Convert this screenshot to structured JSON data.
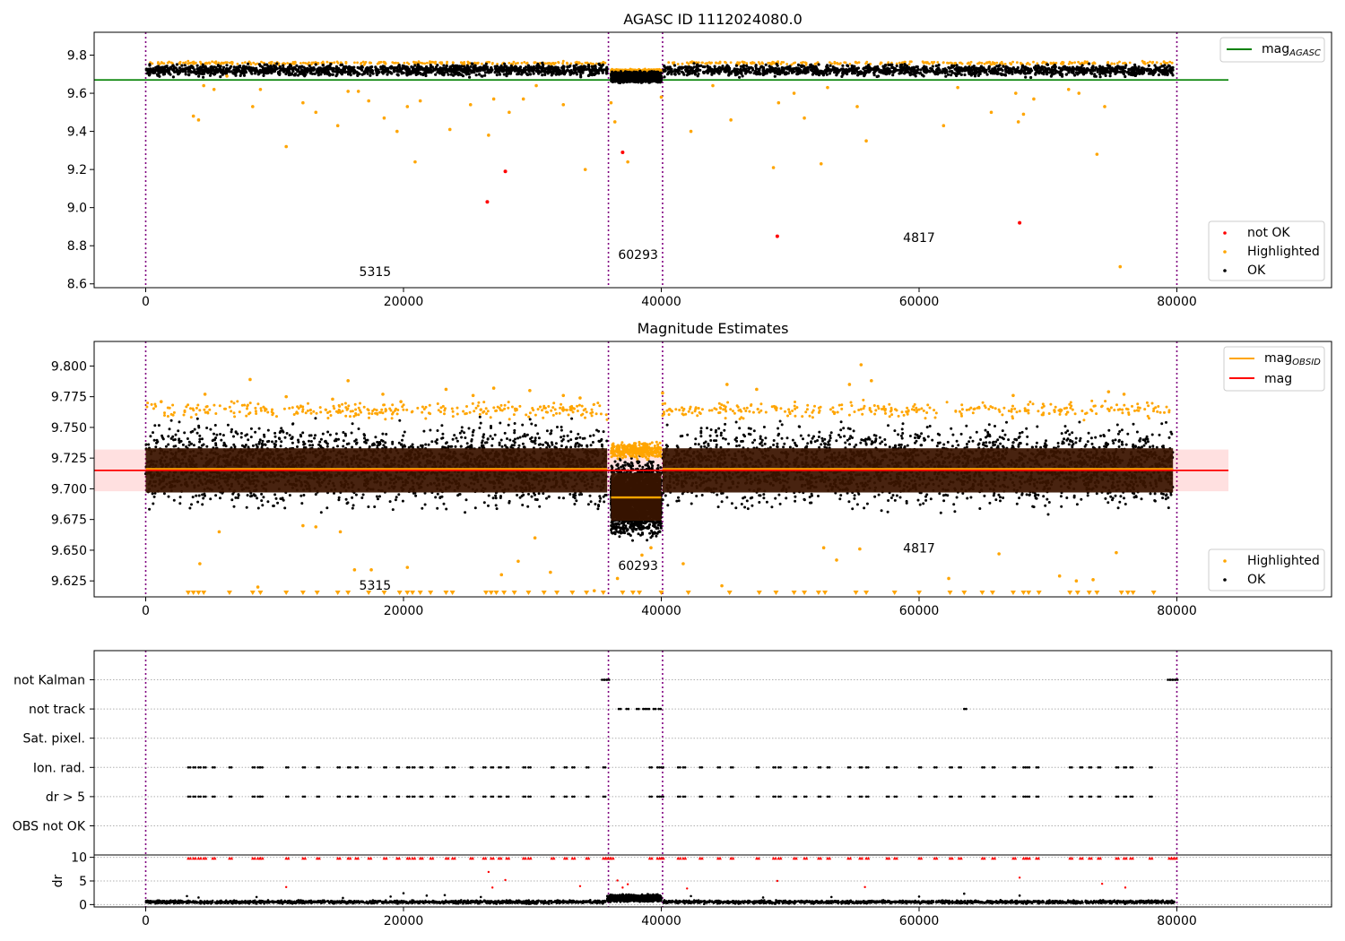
{
  "chart_data": [
    {
      "type": "scatter",
      "title": "AGASC ID 1112024080.0",
      "xlabel": "",
      "ylabel": "",
      "xlim": [
        -4000,
        92000
      ],
      "ylim": [
        8.58,
        9.92
      ],
      "xticks": [
        0,
        20000,
        40000,
        60000,
        80000
      ],
      "xtick_labels": [
        "0",
        "20000",
        "40000",
        "60000",
        "80000"
      ],
      "yticks": [
        8.6,
        8.8,
        9.0,
        9.2,
        9.4,
        9.6,
        9.8
      ],
      "ytick_labels": [
        "8.6",
        "8.8",
        "9.0",
        "9.2",
        "9.4",
        "9.6",
        "9.8"
      ],
      "obs_boundaries": [
        0,
        35900,
        40100,
        80000
      ],
      "obs_labels": [
        {
          "text": "5315",
          "x": 17800,
          "y": 8.64
        },
        {
          "text": "60293",
          "x": 38200,
          "y": 8.73
        },
        {
          "text": "4817",
          "x": 60000,
          "y": 8.82
        }
      ],
      "series": [
        {
          "name": "mag_AGASC",
          "legend": {
            "base": "mag",
            "sub": "AGASC"
          },
          "kind": "line",
          "color": "#008000",
          "x": [
            -4000,
            84000
          ],
          "y": [
            9.67,
            9.67
          ]
        },
        {
          "name": "not OK",
          "kind": "points",
          "color": "#ff0000",
          "x": [
            26500,
            27900,
            37000,
            49000,
            67800
          ],
          "y": [
            9.03,
            9.19,
            9.29,
            8.85,
            8.92
          ]
        },
        {
          "name": "Highlighted",
          "kind": "points",
          "color": "#ffa500",
          "x": [
            3700,
            4100,
            4500,
            5300,
            6300,
            8300,
            8900,
            10900,
            12200,
            13200,
            14900,
            15700,
            16500,
            17300,
            18500,
            19500,
            20300,
            20900,
            21300,
            23600,
            25200,
            26600,
            27000,
            28200,
            29300,
            30300,
            32400,
            34100,
            36100,
            36400,
            37400,
            40000,
            42300,
            44000,
            45400,
            48700,
            49100,
            50300,
            51100,
            52400,
            52900,
            55200,
            55900,
            61900,
            63000,
            65600,
            67500,
            67700,
            68100,
            68900,
            71600,
            72400,
            73800,
            74400,
            75600
          ],
          "y": [
            9.48,
            9.46,
            9.64,
            9.62,
            9.69,
            9.53,
            9.62,
            9.32,
            9.55,
            9.5,
            9.43,
            9.61,
            9.61,
            9.56,
            9.47,
            9.4,
            9.53,
            9.24,
            9.56,
            9.41,
            9.54,
            9.38,
            9.57,
            9.5,
            9.57,
            9.64,
            9.54,
            9.2,
            9.55,
            9.45,
            9.24,
            9.58,
            9.4,
            9.64,
            9.46,
            9.21,
            9.55,
            9.6,
            9.47,
            9.23,
            9.63,
            9.53,
            9.35,
            9.43,
            9.63,
            9.5,
            9.6,
            9.45,
            9.49,
            9.57,
            9.62,
            9.6,
            9.28,
            9.53,
            8.69
          ]
        },
        {
          "name": "OK",
          "kind": "bands",
          "color": "#000000",
          "bands": [
            {
              "x0": 0,
              "x1": 35800,
              "y_low": 9.68,
              "y_high": 9.76
            },
            {
              "x0": 36100,
              "x1": 40000,
              "y_low": 9.65,
              "y_high": 9.72
            },
            {
              "x0": 40100,
              "x1": 79700,
              "y_low": 9.68,
              "y_high": 9.76
            }
          ]
        }
      ],
      "legend_upper": [
        {
          "label_base": "mag",
          "label_sub": "AGASC",
          "color": "#008000"
        }
      ],
      "legend_lower": [
        {
          "label": "not OK",
          "color": "#ff0000"
        },
        {
          "label": "Highlighted",
          "color": "#ffa500"
        },
        {
          "label": "OK",
          "color": "#000000"
        }
      ]
    },
    {
      "type": "scatter",
      "title": "Magnitude Estimates",
      "xlabel": "",
      "ylabel": "",
      "xlim": [
        -4000,
        92000
      ],
      "ylim": [
        9.612,
        9.82
      ],
      "xticks": [
        0,
        20000,
        40000,
        60000,
        80000
      ],
      "xtick_labels": [
        "0",
        "20000",
        "40000",
        "60000",
        "80000"
      ],
      "yticks": [
        9.625,
        9.65,
        9.675,
        9.7,
        9.725,
        9.75,
        9.775,
        9.8
      ],
      "ytick_labels": [
        "9.625",
        "9.650",
        "9.675",
        "9.700",
        "9.725",
        "9.750",
        "9.775",
        "9.800"
      ],
      "obs_boundaries": [
        0,
        35900,
        40100,
        80000
      ],
      "obs_labels": [
        {
          "text": "5315",
          "x": 17800,
          "y": 9.618
        },
        {
          "text": "60293",
          "x": 38200,
          "y": 9.634
        },
        {
          "text": "4817",
          "x": 60000,
          "y": 9.648
        }
      ],
      "mag_line": 9.715,
      "mag_band": [
        9.698,
        9.732
      ],
      "mag_obsid": [
        {
          "x0": 0,
          "x1": 35800,
          "y": 9.716,
          "y_low": 9.697,
          "y_high": 9.733
        },
        {
          "x0": 36100,
          "x1": 40000,
          "y": 9.693,
          "y_low": 9.674,
          "y_high": 9.713
        },
        {
          "x0": 40100,
          "x1": 79700,
          "y": 9.716,
          "y_low": 9.697,
          "y_high": 9.733
        }
      ],
      "ok_bands": [
        {
          "x0": 0,
          "x1": 35800,
          "y_low": 9.676,
          "y_high": 9.761
        },
        {
          "x0": 36100,
          "x1": 40000,
          "y_low": 9.655,
          "y_high": 9.728
        },
        {
          "x0": 40100,
          "x1": 79700,
          "y_low": 9.676,
          "y_high": 9.761
        }
      ],
      "highlighted": {
        "x": [
          4200,
          5700,
          8700,
          12200,
          13200,
          15100,
          16200,
          17500,
          20300,
          27600,
          28900,
          30200,
          31400,
          34800,
          36600,
          38500,
          39200,
          41700,
          44700,
          52600,
          53600,
          55400,
          62300,
          66200,
          70900,
          72200,
          73500,
          75300
        ],
        "y": [
          9.639,
          9.665,
          9.62,
          9.67,
          9.669,
          9.665,
          9.634,
          9.634,
          9.636,
          9.63,
          9.641,
          9.66,
          9.632,
          9.617,
          9.627,
          9.646,
          9.652,
          9.639,
          9.621,
          9.652,
          9.642,
          9.651,
          9.627,
          9.647,
          9.629,
          9.625,
          9.626,
          9.648
        ],
        "upper_x": [
          1200,
          4600,
          8100,
          10900,
          14500,
          15700,
          18400,
          19800,
          23300,
          25400,
          27000,
          29800,
          32400,
          33700,
          38900,
          40100,
          45100,
          47400,
          54600,
          55500,
          56300,
          67300,
          74700,
          75900
        ],
        "upper_y": [
          9.771,
          9.777,
          9.789,
          9.775,
          9.773,
          9.788,
          9.777,
          9.771,
          9.781,
          9.776,
          9.782,
          9.78,
          9.776,
          9.774,
          9.736,
          9.778,
          9.785,
          9.781,
          9.785,
          9.801,
          9.788,
          9.776,
          9.779,
          9.777
        ]
      },
      "lower_markers_x": [
        3300,
        3700,
        4100,
        4500,
        6500,
        8300,
        8900,
        10900,
        12200,
        13300,
        14900,
        15700,
        17300,
        18500,
        19700,
        20300,
        20700,
        21300,
        22100,
        23300,
        23800,
        26400,
        26800,
        27200,
        27800,
        28600,
        29700,
        30900,
        31900,
        33100,
        34200,
        35500,
        37000,
        37800,
        38300,
        40000,
        42100,
        45300,
        47600,
        48900,
        50300,
        51100,
        52200,
        52700,
        55100,
        55900,
        58100,
        60000,
        62400,
        63500,
        64900,
        65700,
        67300,
        68100,
        68500,
        69300,
        71700,
        72300,
        73200,
        73800,
        75700,
        76200,
        76600,
        78200
      ],
      "legend_upper": [
        {
          "label_base": "mag",
          "label_sub": "OBSID",
          "color": "#ffa500"
        },
        {
          "label": "mag",
          "color": "#ff0000"
        }
      ],
      "legend_lower": [
        {
          "label": "Highlighted",
          "color": "#ffa500"
        },
        {
          "label": "OK",
          "color": "#000000"
        }
      ]
    },
    {
      "type": "scatter",
      "title": "",
      "xlabel": "",
      "ylabel": "",
      "xlim": [
        -4000,
        92000
      ],
      "flag_rows": [
        "not Kalman",
        "not track",
        "Sat. pixel.",
        "Ion. rad.",
        "dr > 5",
        "OBS not OK"
      ],
      "flag_points": {
        "not Kalman": [
          35400,
          35600,
          35800,
          79300,
          79500,
          79700,
          79900
        ],
        "not track": [
          36700,
          37300,
          38100,
          38600,
          38900,
          39400,
          39800,
          63500
        ],
        "Sat. pixel.": [],
        "Ion. rad.": [
          3300,
          3700,
          4100,
          4500,
          5200,
          6500,
          8300,
          8700,
          8900,
          10900,
          12200,
          13300,
          14900,
          15700,
          16300,
          17300,
          18500,
          19500,
          20300,
          20700,
          21300,
          22100,
          23300,
          23800,
          25200,
          26200,
          26800,
          27400,
          28000,
          29300,
          29700,
          31500,
          32500,
          33100,
          34200,
          35500,
          39100,
          39700,
          40000,
          41300,
          41700,
          43000,
          44400,
          45400,
          47400,
          48700,
          49100,
          50300,
          51100,
          52200,
          52900,
          54500,
          55400,
          55900,
          57500,
          58100,
          60000,
          61200,
          62400,
          63100,
          64900,
          65700,
          67300,
          68100,
          68400,
          69100,
          71700,
          72500,
          73200,
          73900,
          75300,
          75900,
          76400,
          77900
        ],
        "dr > 5": [
          3300,
          3700,
          4100,
          4500,
          5200,
          6500,
          8300,
          8700,
          8900,
          10900,
          12200,
          13300,
          14900,
          15700,
          16300,
          17300,
          18500,
          19500,
          20300,
          20700,
          21300,
          22100,
          23300,
          23800,
          25200,
          26200,
          26800,
          27400,
          28000,
          29300,
          29700,
          31500,
          32500,
          33100,
          34200,
          35500,
          39100,
          39700,
          40000,
          41300,
          41700,
          43000,
          44400,
          45400,
          47400,
          48700,
          49100,
          50300,
          51100,
          52200,
          52900,
          54500,
          55400,
          55900,
          57500,
          58100,
          60000,
          61200,
          62400,
          63100,
          64900,
          65700,
          67300,
          68100,
          68400,
          69100,
          71700,
          72500,
          73200,
          73900,
          75300,
          75900,
          76400,
          77900
        ],
        "OBS not OK": []
      }
    },
    {
      "type": "scatter",
      "title": "",
      "xlabel": "",
      "ylabel": "dr",
      "xlim": [
        -4000,
        92000
      ],
      "ylim": [
        -0.5,
        10.5
      ],
      "xticks": [
        0,
        20000,
        40000,
        60000,
        80000
      ],
      "xtick_labels": [
        "0",
        "20000",
        "40000",
        "60000",
        "80000"
      ],
      "yticks": [
        0,
        5,
        10
      ],
      "ytick_labels": [
        "0",
        "5",
        "10"
      ],
      "dr_ok_bands": [
        {
          "x0": 0,
          "x1": 35700,
          "y_low": 0.1,
          "y_high": 1.0
        },
        {
          "x0": 35800,
          "x1": 40000,
          "y_low": 0.4,
          "y_high": 2.3
        },
        {
          "x0": 40100,
          "x1": 79800,
          "y_low": 0.1,
          "y_high": 1.0
        }
      ],
      "dr_ok_outliers_x": [
        3200,
        4100,
        8600,
        15300,
        19000,
        20000,
        21800,
        23200,
        26000,
        37000,
        42300,
        47900,
        53200,
        60000,
        63500,
        67800
      ],
      "dr_ok_outliers_y": [
        1.8,
        1.5,
        1.6,
        1.4,
        1.7,
        2.4,
        1.9,
        2.0,
        1.6,
        2.2,
        1.8,
        1.5,
        1.6,
        1.7,
        2.3,
        1.9
      ],
      "dr_red_high_x": [
        3300,
        3700,
        4100,
        4500,
        5200,
        6500,
        8300,
        8700,
        8900,
        10900,
        12200,
        13300,
        14900,
        15700,
        16300,
        17300,
        18500,
        19500,
        20300,
        20700,
        21300,
        22100,
        23300,
        23800,
        25200,
        26200,
        26800,
        27400,
        28000,
        29300,
        29700,
        31500,
        32500,
        33100,
        34200,
        35500,
        35700,
        35900,
        36100,
        39100,
        39700,
        40000,
        41300,
        41700,
        43000,
        44400,
        45400,
        47400,
        48700,
        49100,
        50300,
        51100,
        52200,
        52900,
        54500,
        55400,
        55900,
        57500,
        58100,
        60000,
        61200,
        62400,
        63100,
        64900,
        65700,
        67300,
        68100,
        68400,
        69100,
        71700,
        72500,
        73200,
        73900,
        75300,
        75900,
        76400,
        77900,
        79400,
        79600,
        79800
      ],
      "dr_red_low_x": [
        10900,
        26600,
        26900,
        27900,
        33700,
        36600,
        37000,
        37400,
        42000,
        49000,
        55800,
        67800,
        74200,
        76000
      ],
      "dr_red_low_y": [
        3.7,
        6.9,
        3.6,
        5.2,
        3.9,
        5.1,
        3.6,
        4.3,
        3.4,
        5.0,
        3.7,
        5.7,
        4.4,
        3.6
      ]
    }
  ]
}
